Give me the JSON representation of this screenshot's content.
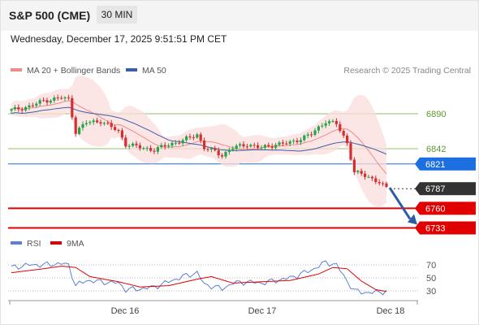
{
  "header": {
    "title": "S&P 500 (CME)",
    "timeframe": "30 MIN"
  },
  "datetime": "Wednesday, December 17, 2025 9:51:51 PM CET",
  "legend_top": [
    {
      "label": "MA 20 + Bollinger Bands",
      "color": "#f08a8a"
    },
    {
      "label": "MA 50",
      "color": "#3a5fa8"
    }
  ],
  "legend_rsi": [
    {
      "label": "RSI",
      "color": "#5b7fd6"
    },
    {
      "label": "9MA",
      "color": "#e00000"
    }
  ],
  "credit": "Research © 2025 Trading Central",
  "colors": {
    "up": "#26a248",
    "down": "#d32f2f",
    "support": "#e00000",
    "pivot": "#1c6fe0",
    "resistance": "#8ec36b",
    "last": "#333333",
    "arrow": "#2f5ba3"
  },
  "chart_data": {
    "type": "candlestick",
    "ylim": [
      6728,
      6918
    ],
    "x_ticks": [
      "Dec 16",
      "Dec 17",
      "Dec 18"
    ],
    "levels": [
      {
        "label": "6890",
        "value": 6890,
        "kind": "resistance"
      },
      {
        "label": "6842",
        "value": 6842,
        "kind": "resistance"
      },
      {
        "label": "6821",
        "value": 6821,
        "kind": "pivot"
      },
      {
        "label": "6787",
        "value": 6787,
        "kind": "last"
      },
      {
        "label": "6760",
        "value": 6760,
        "kind": "support"
      },
      {
        "label": "6733",
        "value": 6733,
        "kind": "support"
      }
    ],
    "target": 6742,
    "anchors": [
      [
        0,
        6895
      ],
      [
        5,
        6900
      ],
      [
        9,
        6908
      ],
      [
        14,
        6912
      ],
      [
        16,
        6910
      ],
      [
        18,
        6865
      ],
      [
        21,
        6878
      ],
      [
        25,
        6880
      ],
      [
        30,
        6866
      ],
      [
        32,
        6848
      ],
      [
        36,
        6844
      ],
      [
        40,
        6840
      ],
      [
        44,
        6848
      ],
      [
        48,
        6853
      ],
      [
        52,
        6862
      ],
      [
        54,
        6843
      ],
      [
        57,
        6838
      ],
      [
        59,
        6833
      ],
      [
        62,
        6843
      ],
      [
        66,
        6848
      ],
      [
        70,
        6843
      ],
      [
        74,
        6848
      ],
      [
        78,
        6850
      ],
      [
        84,
        6862
      ],
      [
        88,
        6880
      ],
      [
        91,
        6876
      ],
      [
        94,
        6850
      ],
      [
        96,
        6810
      ],
      [
        100,
        6803
      ],
      [
        103,
        6796
      ],
      [
        105,
        6787
      ]
    ],
    "rsi": {
      "levels": [
        70,
        50,
        30
      ],
      "rsi_anchors": [
        [
          0,
          66
        ],
        [
          5,
          70
        ],
        [
          9,
          70
        ],
        [
          14,
          72
        ],
        [
          16,
          70
        ],
        [
          18,
          38
        ],
        [
          21,
          46
        ],
        [
          25,
          44
        ],
        [
          30,
          42
        ],
        [
          32,
          32
        ],
        [
          36,
          33
        ],
        [
          40,
          36
        ],
        [
          44,
          44
        ],
        [
          48,
          52
        ],
        [
          52,
          58
        ],
        [
          54,
          40
        ],
        [
          57,
          36
        ],
        [
          59,
          33
        ],
        [
          62,
          42
        ],
        [
          66,
          44
        ],
        [
          70,
          42
        ],
        [
          74,
          46
        ],
        [
          78,
          50
        ],
        [
          84,
          62
        ],
        [
          88,
          74
        ],
        [
          91,
          70
        ],
        [
          94,
          45
        ],
        [
          96,
          30
        ],
        [
          100,
          27
        ],
        [
          103,
          28
        ],
        [
          105,
          30
        ]
      ],
      "ma_anchors": [
        [
          0,
          58
        ],
        [
          9,
          64
        ],
        [
          14,
          68
        ],
        [
          18,
          66
        ],
        [
          22,
          52
        ],
        [
          30,
          44
        ],
        [
          36,
          36
        ],
        [
          44,
          38
        ],
        [
          52,
          48
        ],
        [
          56,
          52
        ],
        [
          62,
          42
        ],
        [
          70,
          44
        ],
        [
          78,
          46
        ],
        [
          86,
          56
        ],
        [
          90,
          66
        ],
        [
          94,
          64
        ],
        [
          98,
          45
        ],
        [
          102,
          32
        ],
        [
          105,
          29
        ]
      ]
    }
  }
}
